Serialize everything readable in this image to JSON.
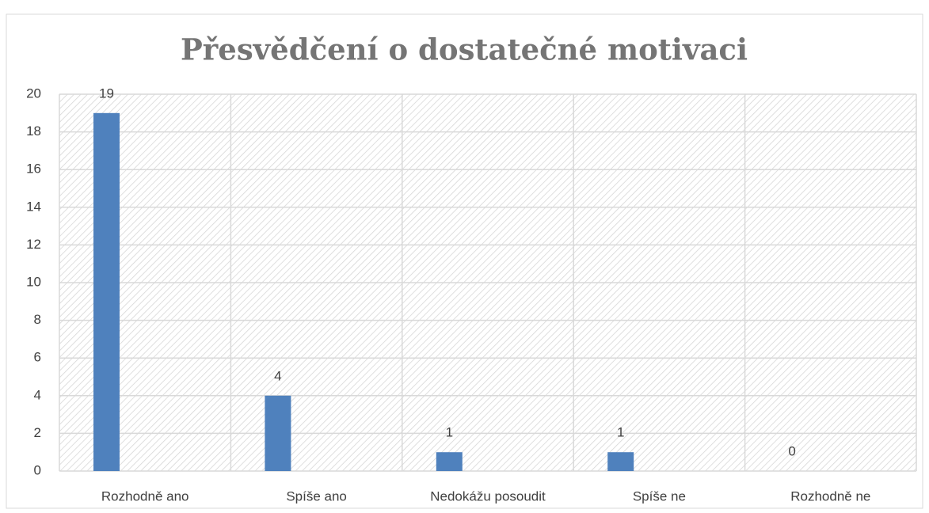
{
  "chart_data": {
    "type": "bar",
    "title": "Přesvědčení o dostatečné motivaci",
    "categories": [
      "Rozhodně ano",
      "Spíše ano",
      "Nedokážu posoudit",
      "Spíše ne",
      "Rozhodně ne"
    ],
    "values": [
      19,
      4,
      1,
      1,
      0
    ],
    "color": "#4f81bd",
    "ylim": [
      0,
      20
    ],
    "yticks": [
      0,
      2,
      4,
      6,
      8,
      10,
      12,
      14,
      16,
      18,
      20
    ],
    "grid": true
  }
}
